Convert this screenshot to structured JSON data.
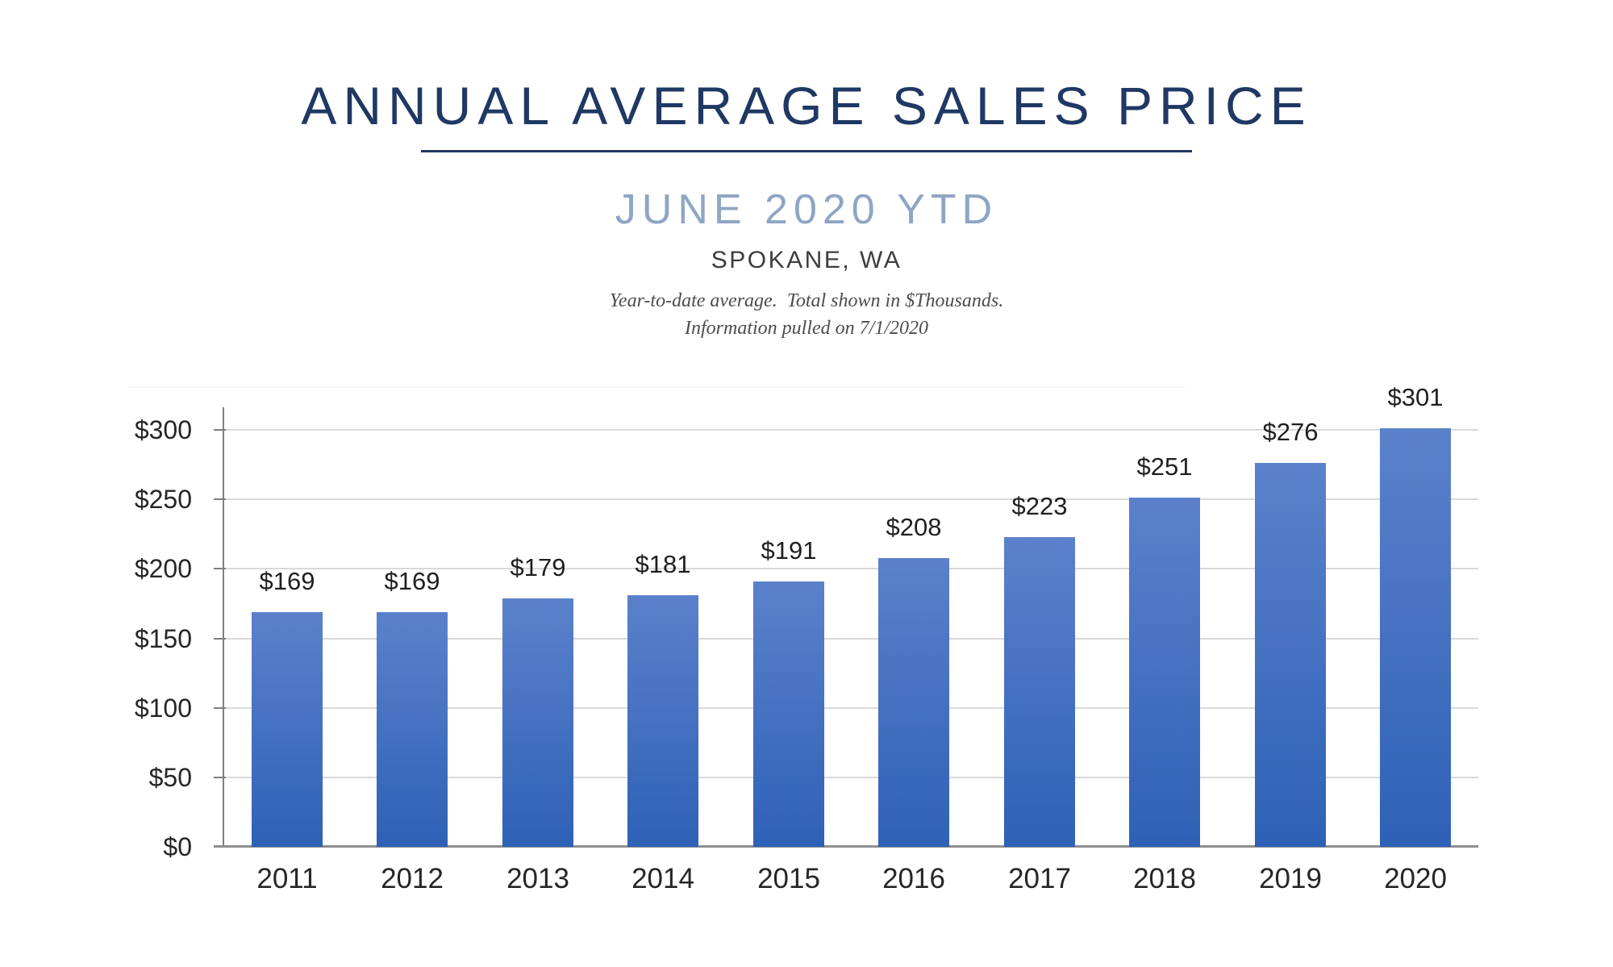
{
  "header": {
    "title": "ANNUAL AVERAGE SALES PRICE",
    "subtitle": "JUNE 2020 YTD",
    "location": "SPOKANE, WA",
    "note_line1": "Year-to-date average.  Total shown in $Thousands.",
    "note_line2": "Information pulled on 7/1/2020"
  },
  "colors": {
    "title_navy": "#1f3864",
    "subtitle_blue_gray": "#8fa5c4",
    "location_gray": "#3d3d3d",
    "note_gray": "#4c4c4c",
    "bar_gradient_top": "#5b81cb",
    "bar_gradient_bottom": "#2e61b6",
    "gridline": "#d9d9d9",
    "axis_line": "#7f7f7f",
    "baseline": "#8f8f8f",
    "label_dark": "#262626"
  },
  "chart_data": {
    "type": "bar",
    "title": "ANNUAL AVERAGE SALES PRICE",
    "subtitle": "JUNE 2020 YTD",
    "region": "SPOKANE, WA",
    "categories": [
      "2011",
      "2012",
      "2013",
      "2014",
      "2015",
      "2016",
      "2017",
      "2018",
      "2019",
      "2020"
    ],
    "values": [
      169,
      169,
      179,
      181,
      191,
      208,
      223,
      251,
      276,
      301
    ],
    "data_labels": [
      "$169",
      "$169",
      "$179",
      "$181",
      "$191",
      "$208",
      "$223",
      "$251",
      "$276",
      "$301"
    ],
    "xlabel": "",
    "ylabel": "",
    "ylim": [
      0,
      300
    ],
    "ytick_interval": 50,
    "ytick_labels": [
      "$0",
      "$50",
      "$100",
      "$150",
      "$200",
      "$250",
      "$300"
    ],
    "grid": true,
    "legend": "none"
  }
}
